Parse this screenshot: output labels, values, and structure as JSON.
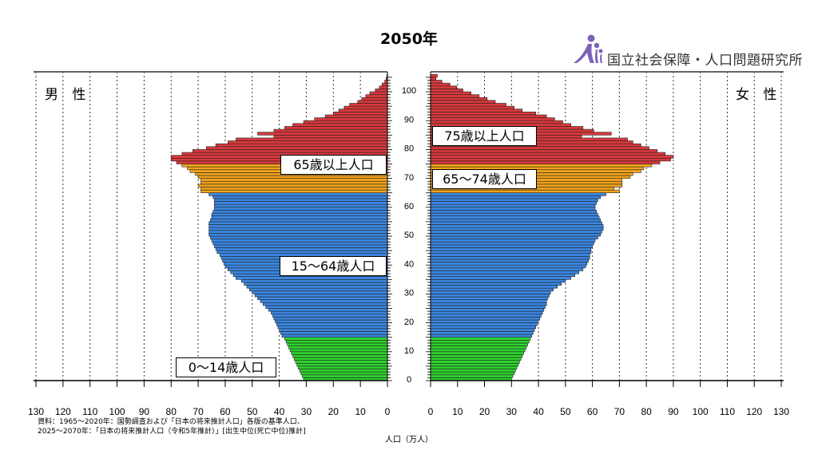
{
  "title": "2050年",
  "logo": {
    "text": "国立社会保障・人口問題研究所",
    "color": "#7b62b5"
  },
  "labels": {
    "male": "男 性",
    "female": "女 性",
    "group_65_plus": "65歳以上人口",
    "group_75_plus": "75歳以上人口",
    "group_65_74": "65〜74歳人口",
    "group_15_64": "15〜64歳人口",
    "group_0_14": "0〜14歳人口"
  },
  "notes": [
    "資料：1965〜2020年：国勢調査および「日本の将来推計人口」各版の基準人口、",
    "2025〜2070年：「日本の将来推計人口（令和5年推計）」[出生中位(死亡中位)推計]"
  ],
  "chart_data": {
    "type": "bar",
    "orientation": "horizontal-pyramid",
    "title": "2050年",
    "xlabel": "人口（万人）",
    "xlim": [
      0,
      130
    ],
    "x_ticks": [
      0,
      10,
      20,
      30,
      40,
      50,
      60,
      70,
      80,
      90,
      100,
      110,
      120,
      130
    ],
    "age_ticks": [
      0,
      10,
      20,
      30,
      40,
      50,
      60,
      70,
      80,
      90,
      100
    ],
    "grid": "vertical dashed",
    "colors": {
      "0-14": "#2ed12e",
      "15-64": "#3b86e0",
      "65-74": "#f2a31b",
      "75+": "#d8393c"
    },
    "age_groups": [
      [
        0,
        14,
        "0-14"
      ],
      [
        15,
        64,
        "15-64"
      ],
      [
        65,
        74,
        "65-74"
      ],
      [
        75,
        105,
        "75+"
      ]
    ],
    "ages_from": 0,
    "male": [
      31,
      31.5,
      32,
      32.5,
      33,
      33.5,
      34,
      34.5,
      35,
      35.5,
      36,
      36.5,
      37,
      37.5,
      38,
      39,
      39.5,
      40,
      40.5,
      41,
      41.5,
      42,
      42.5,
      43,
      44,
      45,
      46,
      47,
      48,
      49,
      50,
      51,
      52,
      53,
      54,
      56,
      57,
      58,
      59,
      60,
      60.5,
      61,
      61.5,
      62,
      63,
      63.5,
      64,
      64.5,
      65,
      65.5,
      66,
      66,
      66,
      66,
      66,
      65.5,
      65,
      65,
      64.5,
      64,
      64,
      64,
      64,
      64.5,
      66,
      69,
      69,
      70,
      69,
      69,
      70,
      71,
      73,
      74,
      76,
      78,
      80,
      80,
      76,
      72,
      67,
      63.5,
      59,
      56,
      42,
      48,
      42,
      38,
      35,
      31,
      27,
      23,
      20,
      18,
      16,
      14,
      11,
      9.5,
      8,
      6.5,
      4.5,
      3,
      2,
      1,
      0.5,
      0.2
    ],
    "female": [
      30,
      30.5,
      31,
      31.5,
      32,
      32.5,
      33,
      33.5,
      34,
      34.5,
      35,
      35.5,
      36,
      36.5,
      37,
      37.5,
      38,
      38.5,
      39,
      39.5,
      40,
      40.5,
      41,
      41.5,
      42,
      42.5,
      43,
      43,
      43.5,
      44,
      44.5,
      45.5,
      47,
      48.5,
      50,
      52,
      53.5,
      55,
      56.5,
      57.5,
      58,
      58.5,
      59,
      59,
      59.5,
      59.5,
      60,
      60.5,
      61,
      62,
      63,
      63.5,
      64,
      64,
      63.5,
      63,
      62.5,
      62,
      61.5,
      61,
      61,
      61.5,
      62,
      63,
      65,
      70,
      68,
      71,
      71,
      71,
      74,
      75,
      78,
      79,
      82,
      85,
      89,
      90,
      87,
      84,
      81,
      78,
      75,
      73,
      56,
      67,
      60.5,
      56.5,
      52,
      49,
      46,
      43,
      39,
      34,
      31,
      28,
      24,
      21,
      18,
      15,
      12,
      9.7,
      7.2,
      4.2,
      2,
      2.5
    ]
  }
}
